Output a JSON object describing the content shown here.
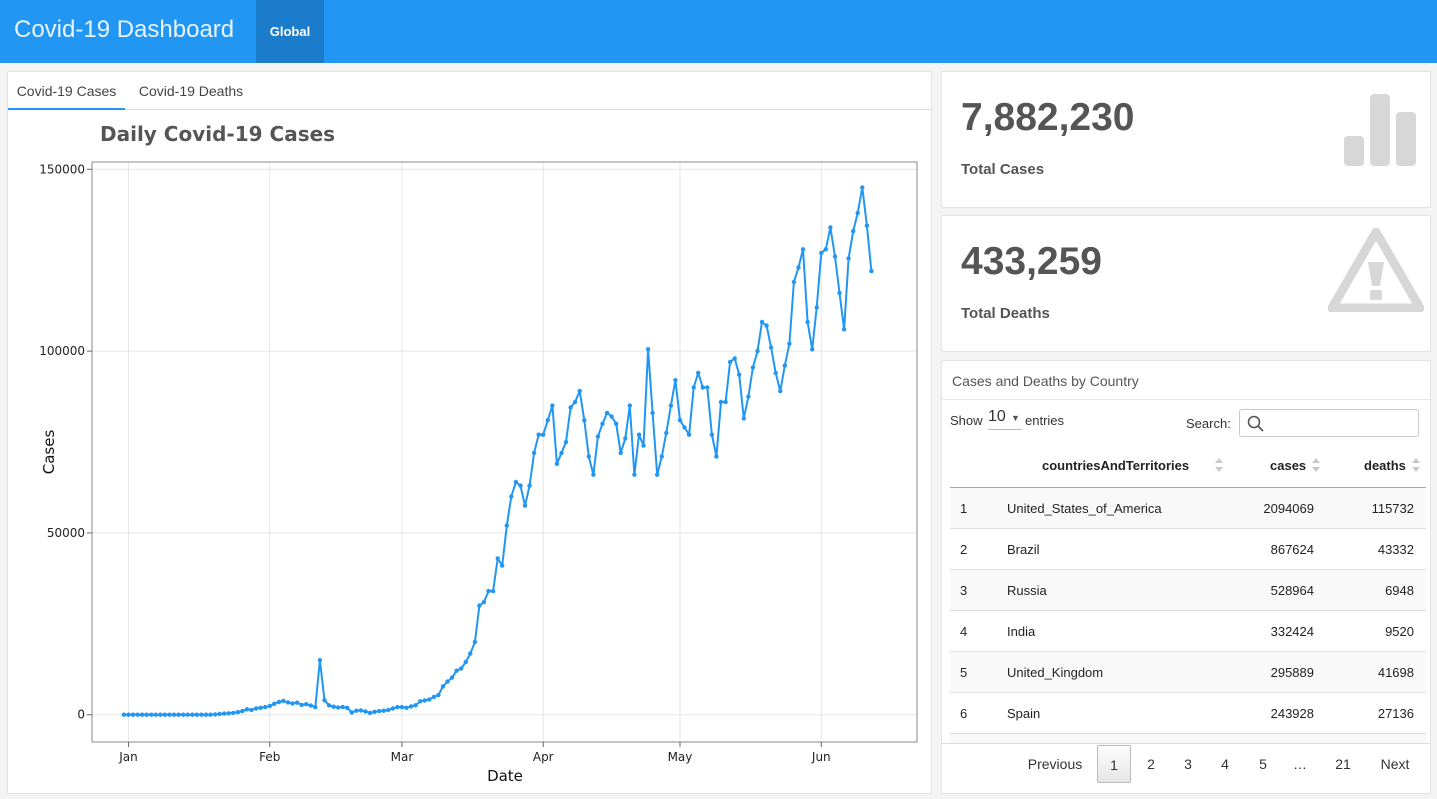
{
  "app": {
    "title": "Covid-19 Dashboard",
    "nav_tab": "Global"
  },
  "chart_tabs": [
    "Covid-19 Cases",
    "Covid-19 Deaths"
  ],
  "stats": {
    "cases": {
      "value": "7,882,230",
      "label": "Total Cases",
      "icon": "bar-chart-icon"
    },
    "deaths": {
      "value": "433,259",
      "label": "Total Deaths",
      "icon": "warning-icon"
    }
  },
  "table": {
    "title": "Cases and Deaths by Country",
    "show_label": "Show",
    "page_length": "10",
    "entries_label": "entries",
    "search_label": "Search:",
    "search_value": "",
    "columns": [
      "countriesAndTerritories",
      "cases",
      "deaths"
    ],
    "rows": [
      {
        "idx": "1",
        "country": "United_States_of_America",
        "cases": "2094069",
        "deaths": "115732"
      },
      {
        "idx": "2",
        "country": "Brazil",
        "cases": "867624",
        "deaths": "43332"
      },
      {
        "idx": "3",
        "country": "Russia",
        "cases": "528964",
        "deaths": "6948"
      },
      {
        "idx": "4",
        "country": "India",
        "cases": "332424",
        "deaths": "9520"
      },
      {
        "idx": "5",
        "country": "United_Kingdom",
        "cases": "295889",
        "deaths": "41698"
      },
      {
        "idx": "6",
        "country": "Spain",
        "cases": "243928",
        "deaths": "27136"
      }
    ],
    "pagination": {
      "previous": "Previous",
      "pages": [
        "1",
        "2",
        "3",
        "4",
        "5",
        "…",
        "21"
      ],
      "next": "Next",
      "current": "1"
    }
  },
  "colors": {
    "navbar": "#2196f3",
    "nav_tab_active": "#1b7ccc",
    "line": "#2196f3"
  },
  "chart_data": {
    "type": "line",
    "title": "Daily Covid-19 Cases",
    "xlabel": "Date",
    "ylabel": "Cases",
    "x_tick_labels": [
      "Jan",
      "Feb",
      "Mar",
      "Apr",
      "May",
      "Jun"
    ],
    "x_tick_dates": [
      "2020-01-01",
      "2020-02-01",
      "2020-03-01",
      "2020-04-01",
      "2020-05-01",
      "2020-06-01"
    ],
    "y_ticks": [
      0,
      50000,
      100000,
      150000
    ],
    "xlim": [
      "2019-12-24",
      "2020-06-22"
    ],
    "ylim": [
      -7500,
      152000
    ],
    "grid": true,
    "series": [
      {
        "x_start": "2019-12-31",
        "values": [
          0,
          0,
          0,
          0,
          0,
          0,
          0,
          0,
          0,
          0,
          0,
          0,
          0,
          0,
          0,
          0,
          0,
          0,
          0,
          0,
          100,
          200,
          300,
          400,
          500,
          700,
          1000,
          1500,
          1300,
          1700,
          1900,
          2100,
          2400,
          3000,
          3500,
          3800,
          3400,
          3100,
          3300,
          2700,
          2900,
          2500,
          2100,
          15000,
          4000,
          2600,
          2200,
          2000,
          2100,
          1900,
          600,
          1100,
          1200,
          900,
          500,
          800,
          1000,
          1100,
          1300,
          1700,
          2100,
          2100,
          1900,
          2300,
          2600,
          3700,
          3900,
          4200,
          4900,
          5400,
          7800,
          9100,
          10200,
          12100,
          12700,
          14500,
          16800,
          20000,
          30000,
          31000,
          34000,
          34000,
          43000,
          41000,
          52000,
          60000,
          64000,
          63000,
          57500,
          63000,
          72000,
          77000,
          77000,
          81000,
          85000,
          69000,
          72000,
          75000,
          84500,
          86000,
          89000,
          81000,
          71000,
          66000,
          76500,
          80000,
          83000,
          82000,
          80000,
          72000,
          76000,
          85000,
          66000,
          77000,
          74000,
          100500,
          83000,
          66000,
          71000,
          77500,
          85000,
          92000,
          81000,
          79000,
          77000,
          90000,
          94000,
          90000,
          90000,
          77000,
          71000,
          86000,
          86000,
          97000,
          98000,
          93500,
          81500,
          87500,
          95500,
          100000,
          108000,
          107000,
          101000,
          94000,
          89000,
          96000,
          102000,
          119000,
          123000,
          128000,
          108000,
          100500,
          112000,
          127000,
          128000,
          134000,
          126000,
          116000,
          106000,
          125500,
          133000,
          138000,
          145000,
          134500,
          122000
        ]
      }
    ]
  }
}
